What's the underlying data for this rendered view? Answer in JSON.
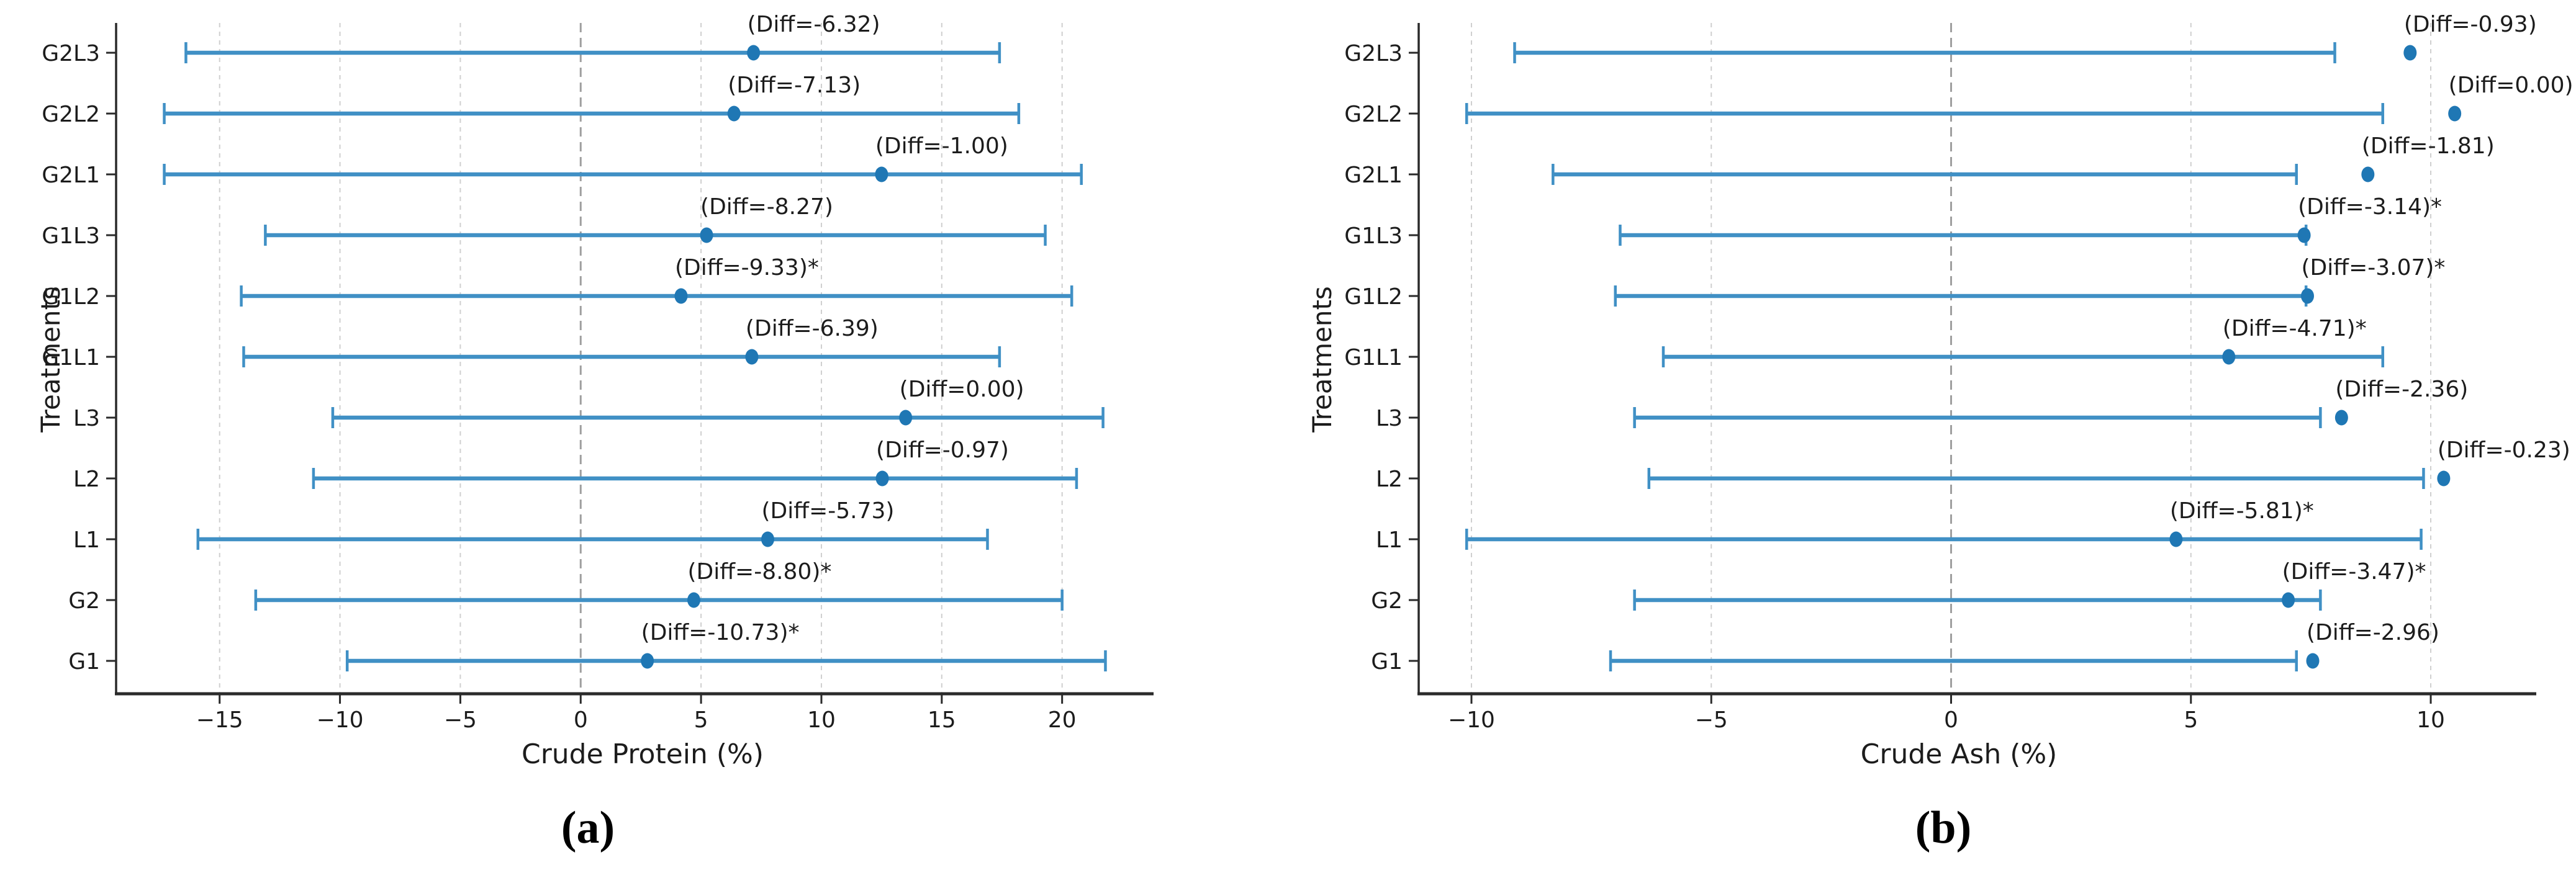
{
  "figure": {
    "captions": {
      "a": "(a)",
      "b": "(b)"
    }
  },
  "colors": {
    "background": "#ffffff",
    "bar": "#4090c5",
    "dot": "#1f77b4",
    "grid": "#cfcfcf",
    "zero_line": "#9f9f9f",
    "spine": "#2a2a2a",
    "text": "#1c1c1c"
  },
  "chart_data": [
    {
      "type": "scatter",
      "subtype": "horizontal-errorbar-dotplot",
      "caption": "(a)",
      "title": "",
      "xlabel": "Crude Protein (%)",
      "ylabel": "Treatments",
      "xlim": [
        -19.3,
        23.8
      ],
      "xticks": [
        -15,
        -10,
        -5,
        0,
        5,
        10,
        15,
        20
      ],
      "grid": "vertical-dashed",
      "zero_reference_line": 0,
      "legend_position": "none",
      "categories_top_to_bottom": [
        "G2L3",
        "G2L2",
        "G2L1",
        "G1L3",
        "G1L2",
        "G1L1",
        "L3",
        "L2",
        "L1",
        "G2",
        "G1"
      ],
      "rows": [
        {
          "category": "G2L3",
          "low": -16.4,
          "high": 17.4,
          "mean": 7.18,
          "annotation": "(Diff=-6.32)"
        },
        {
          "category": "G2L2",
          "low": -17.3,
          "high": 18.2,
          "mean": 6.37,
          "annotation": "(Diff=-7.13)"
        },
        {
          "category": "G2L1",
          "low": -17.3,
          "high": 20.8,
          "mean": 12.5,
          "annotation": "(Diff=-1.00)"
        },
        {
          "category": "G1L3",
          "low": -13.1,
          "high": 19.3,
          "mean": 5.23,
          "annotation": "(Diff=-8.27)"
        },
        {
          "category": "G1L2",
          "low": -14.1,
          "high": 20.4,
          "mean": 4.17,
          "annotation": "(Diff=-9.33)*"
        },
        {
          "category": "G1L1",
          "low": -14.0,
          "high": 17.4,
          "mean": 7.11,
          "annotation": "(Diff=-6.39)"
        },
        {
          "category": "L3",
          "low": -10.3,
          "high": 21.7,
          "mean": 13.5,
          "annotation": "(Diff=0.00)"
        },
        {
          "category": "L2",
          "low": -11.1,
          "high": 20.6,
          "mean": 12.53,
          "annotation": "(Diff=-0.97)"
        },
        {
          "category": "L1",
          "low": -15.9,
          "high": 16.9,
          "mean": 7.77,
          "annotation": "(Diff=-5.73)"
        },
        {
          "category": "G2",
          "low": -13.5,
          "high": 20.0,
          "mean": 4.7,
          "annotation": "(Diff=-8.80)*"
        },
        {
          "category": "G1",
          "low": -9.7,
          "high": 21.8,
          "mean": 2.77,
          "annotation": "(Diff=-10.73)*"
        }
      ]
    },
    {
      "type": "scatter",
      "subtype": "horizontal-errorbar-dotplot",
      "caption": "(b)",
      "title": "",
      "xlabel": "Crude Ash (%)",
      "ylabel": "Treatments",
      "xlim": [
        -11.1,
        12.2
      ],
      "xticks": [
        -10,
        -5,
        0,
        5,
        10
      ],
      "grid": "vertical-dashed",
      "zero_reference_line": 0,
      "legend_position": "none",
      "categories_top_to_bottom": [
        "G2L3",
        "G2L2",
        "G2L1",
        "G1L3",
        "G1L2",
        "G1L1",
        "L3",
        "L2",
        "L1",
        "G2",
        "G1"
      ],
      "rows": [
        {
          "category": "G2L3",
          "low": -9.1,
          "high": 8.0,
          "mean": 9.57,
          "annotation": "(Diff=-0.93)"
        },
        {
          "category": "G2L2",
          "low": -10.1,
          "high": 9.0,
          "mean": 10.5,
          "annotation": "(Diff=0.00)"
        },
        {
          "category": "G2L1",
          "low": -8.3,
          "high": 7.2,
          "mean": 8.69,
          "annotation": "(Diff=-1.81)"
        },
        {
          "category": "G1L3",
          "low": -6.9,
          "high": 7.4,
          "mean": 7.36,
          "annotation": "(Diff=-3.14)*"
        },
        {
          "category": "G1L2",
          "low": -7.0,
          "high": 7.4,
          "mean": 7.43,
          "annotation": "(Diff=-3.07)*"
        },
        {
          "category": "G1L1",
          "low": -6.0,
          "high": 9.0,
          "mean": 5.79,
          "annotation": "(Diff=-4.71)*"
        },
        {
          "category": "L3",
          "low": -6.6,
          "high": 7.7,
          "mean": 8.14,
          "annotation": "(Diff=-2.36)"
        },
        {
          "category": "L2",
          "low": -6.3,
          "high": 9.85,
          "mean": 10.27,
          "annotation": "(Diff=-0.23)"
        },
        {
          "category": "L1",
          "low": -10.1,
          "high": 9.8,
          "mean": 4.69,
          "annotation": "(Diff=-5.81)*"
        },
        {
          "category": "G2",
          "low": -6.6,
          "high": 7.7,
          "mean": 7.03,
          "annotation": "(Diff=-3.47)*"
        },
        {
          "category": "G1",
          "low": -7.1,
          "high": 7.2,
          "mean": 7.54,
          "annotation": "(Diff=-2.96)"
        }
      ]
    }
  ]
}
